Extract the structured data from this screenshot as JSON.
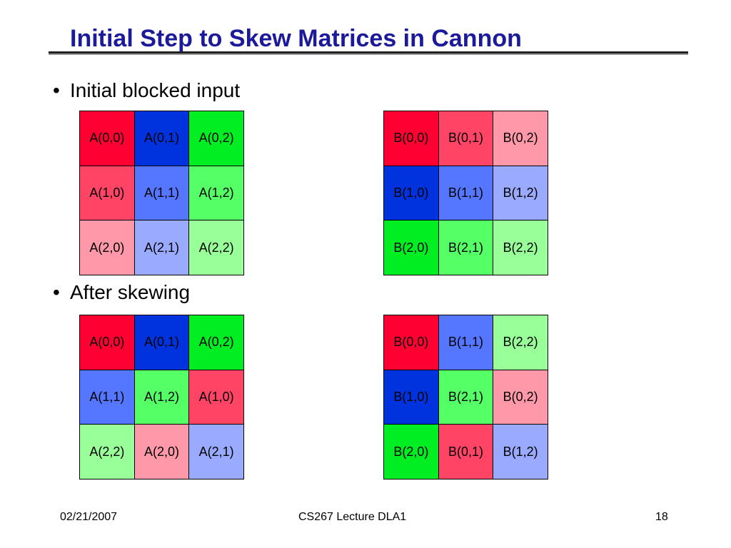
{
  "slide": {
    "title": "Initial Step to Skew Matrices in Cannon",
    "bullets": [
      {
        "dot": "•",
        "text": "Initial blocked input"
      },
      {
        "dot": "•",
        "text": "After skewing"
      }
    ]
  },
  "colors": {
    "title": "#1a1a9a",
    "red": "#ff0033",
    "red_mid": "#ff4466",
    "red_light": "#ff99aa",
    "blue": "#0033dd",
    "blue_mid": "#5577ff",
    "blue_light": "#99aaff",
    "green": "#00ee22",
    "green_mid": "#55ff66",
    "green_light": "#99ff99"
  },
  "matrices": {
    "initial_A": [
      [
        {
          "label": "A(0,0)",
          "color": "red"
        },
        {
          "label": "A(0,1)",
          "color": "blue"
        },
        {
          "label": "A(0,2)",
          "color": "green"
        }
      ],
      [
        {
          "label": "A(1,0)",
          "color": "red_mid"
        },
        {
          "label": "A(1,1)",
          "color": "blue_mid"
        },
        {
          "label": "A(1,2)",
          "color": "green_mid"
        }
      ],
      [
        {
          "label": "A(2,0)",
          "color": "red_light"
        },
        {
          "label": "A(2,1)",
          "color": "blue_light"
        },
        {
          "label": "A(2,2)",
          "color": "green_light"
        }
      ]
    ],
    "initial_B": [
      [
        {
          "label": "B(0,0)",
          "color": "red"
        },
        {
          "label": "B(0,1)",
          "color": "red_mid"
        },
        {
          "label": "B(0,2)",
          "color": "red_light"
        }
      ],
      [
        {
          "label": "B(1,0)",
          "color": "blue"
        },
        {
          "label": "B(1,1)",
          "color": "blue_mid"
        },
        {
          "label": "B(1,2)",
          "color": "blue_light"
        }
      ],
      [
        {
          "label": "B(2,0)",
          "color": "green"
        },
        {
          "label": "B(2,1)",
          "color": "green_mid"
        },
        {
          "label": "B(2,2)",
          "color": "green_light"
        }
      ]
    ],
    "skewed_A": [
      [
        {
          "label": "A(0,0)",
          "color": "red"
        },
        {
          "label": "A(0,1)",
          "color": "blue"
        },
        {
          "label": "A(0,2)",
          "color": "green"
        }
      ],
      [
        {
          "label": "A(1,1)",
          "color": "blue_mid"
        },
        {
          "label": "A(1,2)",
          "color": "green_mid"
        },
        {
          "label": "A(1,0)",
          "color": "red_mid"
        }
      ],
      [
        {
          "label": "A(2,2)",
          "color": "green_light"
        },
        {
          "label": "A(2,0)",
          "color": "red_light"
        },
        {
          "label": "A(2,1)",
          "color": "blue_light"
        }
      ]
    ],
    "skewed_B": [
      [
        {
          "label": "B(0,0)",
          "color": "red"
        },
        {
          "label": "B(1,1)",
          "color": "blue_mid"
        },
        {
          "label": "B(2,2)",
          "color": "green_light"
        }
      ],
      [
        {
          "label": "B(1,0)",
          "color": "blue"
        },
        {
          "label": "B(2,1)",
          "color": "green_mid"
        },
        {
          "label": "B(0,2)",
          "color": "red_light"
        }
      ],
      [
        {
          "label": "B(2,0)",
          "color": "green"
        },
        {
          "label": "B(0,1)",
          "color": "red_mid"
        },
        {
          "label": "B(1,2)",
          "color": "blue_light"
        }
      ]
    ]
  },
  "footer": {
    "date": "02/21/2007",
    "course": "CS267 Lecture DLA1",
    "page": "18"
  }
}
